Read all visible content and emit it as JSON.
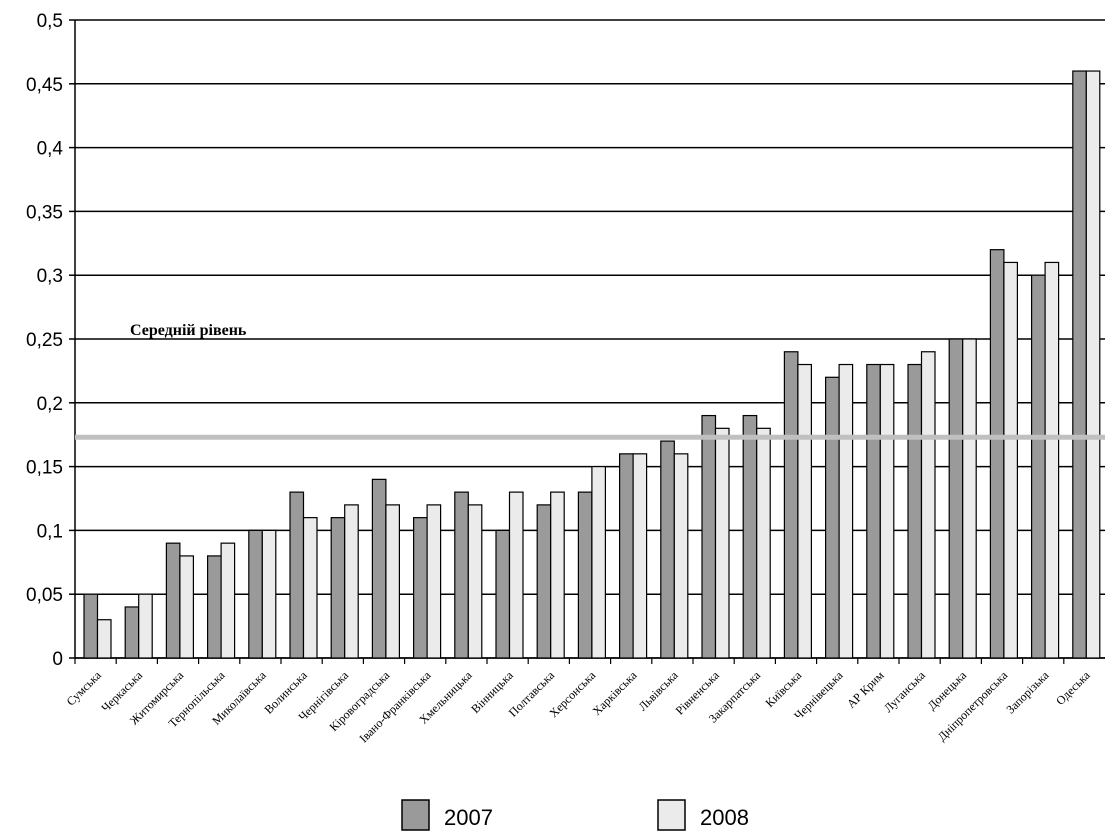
{
  "chart_data": {
    "type": "bar",
    "title": "",
    "xlabel": "",
    "ylabel": "",
    "ylim": [
      0,
      0.5
    ],
    "yticks": [
      "0",
      "0,05",
      "0,1",
      "0,15",
      "0,2",
      "0,25",
      "0,3",
      "0,35",
      "0,4",
      "0,45",
      "0,5"
    ],
    "categories": [
      "Сумська",
      "Черкаська",
      "Житомирська",
      "Тернопільська",
      "Миколаївська",
      "Волинська",
      "Чернігівська",
      "Кіровоградська",
      "Івано-Франківська",
      "Хмельницька",
      "Вінницька",
      "Полтавська",
      "Херсонська",
      "Харківська",
      "Львівська",
      "Рівненська",
      "Закарпатська",
      "Київська",
      "Чернівецька",
      "АР Крим",
      "Луганська",
      "Донецька",
      "Дніпропетровська",
      "Запорізька",
      "Одеська"
    ],
    "series": [
      {
        "name": "2007",
        "color": "#9a9a9a",
        "values": [
          0.05,
          0.04,
          0.09,
          0.08,
          0.1,
          0.13,
          0.11,
          0.14,
          0.11,
          0.13,
          0.1,
          0.12,
          0.13,
          0.16,
          0.17,
          0.19,
          0.19,
          0.24,
          0.22,
          0.23,
          0.23,
          0.25,
          0.32,
          0.3,
          0.46
        ]
      },
      {
        "name": "2008",
        "color": "#ebebeb",
        "values": [
          0.03,
          0.05,
          0.08,
          0.09,
          0.1,
          0.11,
          0.12,
          0.12,
          0.12,
          0.12,
          0.13,
          0.13,
          0.15,
          0.16,
          0.16,
          0.18,
          0.18,
          0.23,
          0.23,
          0.23,
          0.24,
          0.25,
          0.31,
          0.31,
          0.46
        ]
      }
    ],
    "average": {
      "label": "Середній рівень",
      "value": 0.173,
      "color": "#c0c0c0"
    },
    "grid": true,
    "legend": "bottom"
  }
}
